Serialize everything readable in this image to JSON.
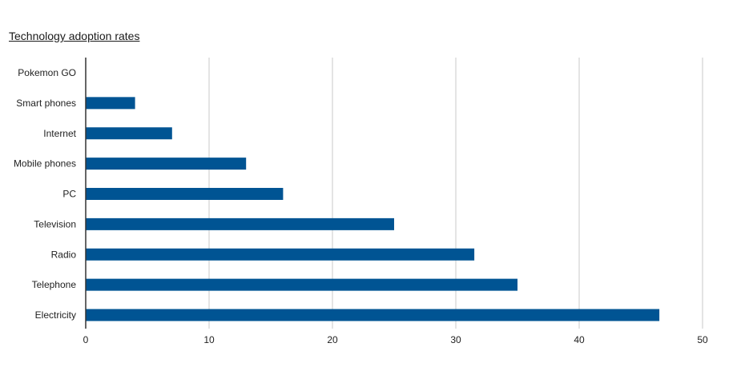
{
  "chart_data": {
    "type": "bar",
    "orientation": "horizontal",
    "title": "Technology adoption rates",
    "xlabel": "",
    "ylabel": "",
    "categories": [
      "Pokemon GO",
      "Smart phones",
      "Internet",
      "Mobile phones",
      "PC",
      "Television",
      "Radio",
      "Telephone",
      "Electricity"
    ],
    "values": [
      0,
      4,
      7,
      13,
      16,
      25,
      31.5,
      35,
      46.5
    ],
    "xlim": [
      0,
      50
    ],
    "xticks": [
      "0",
      "10",
      "20",
      "30",
      "40",
      "50"
    ],
    "grid": true,
    "legend": "none",
    "bar_color": "#005493",
    "grid_color": "#c8c8c8",
    "axis_color": "#333333"
  }
}
